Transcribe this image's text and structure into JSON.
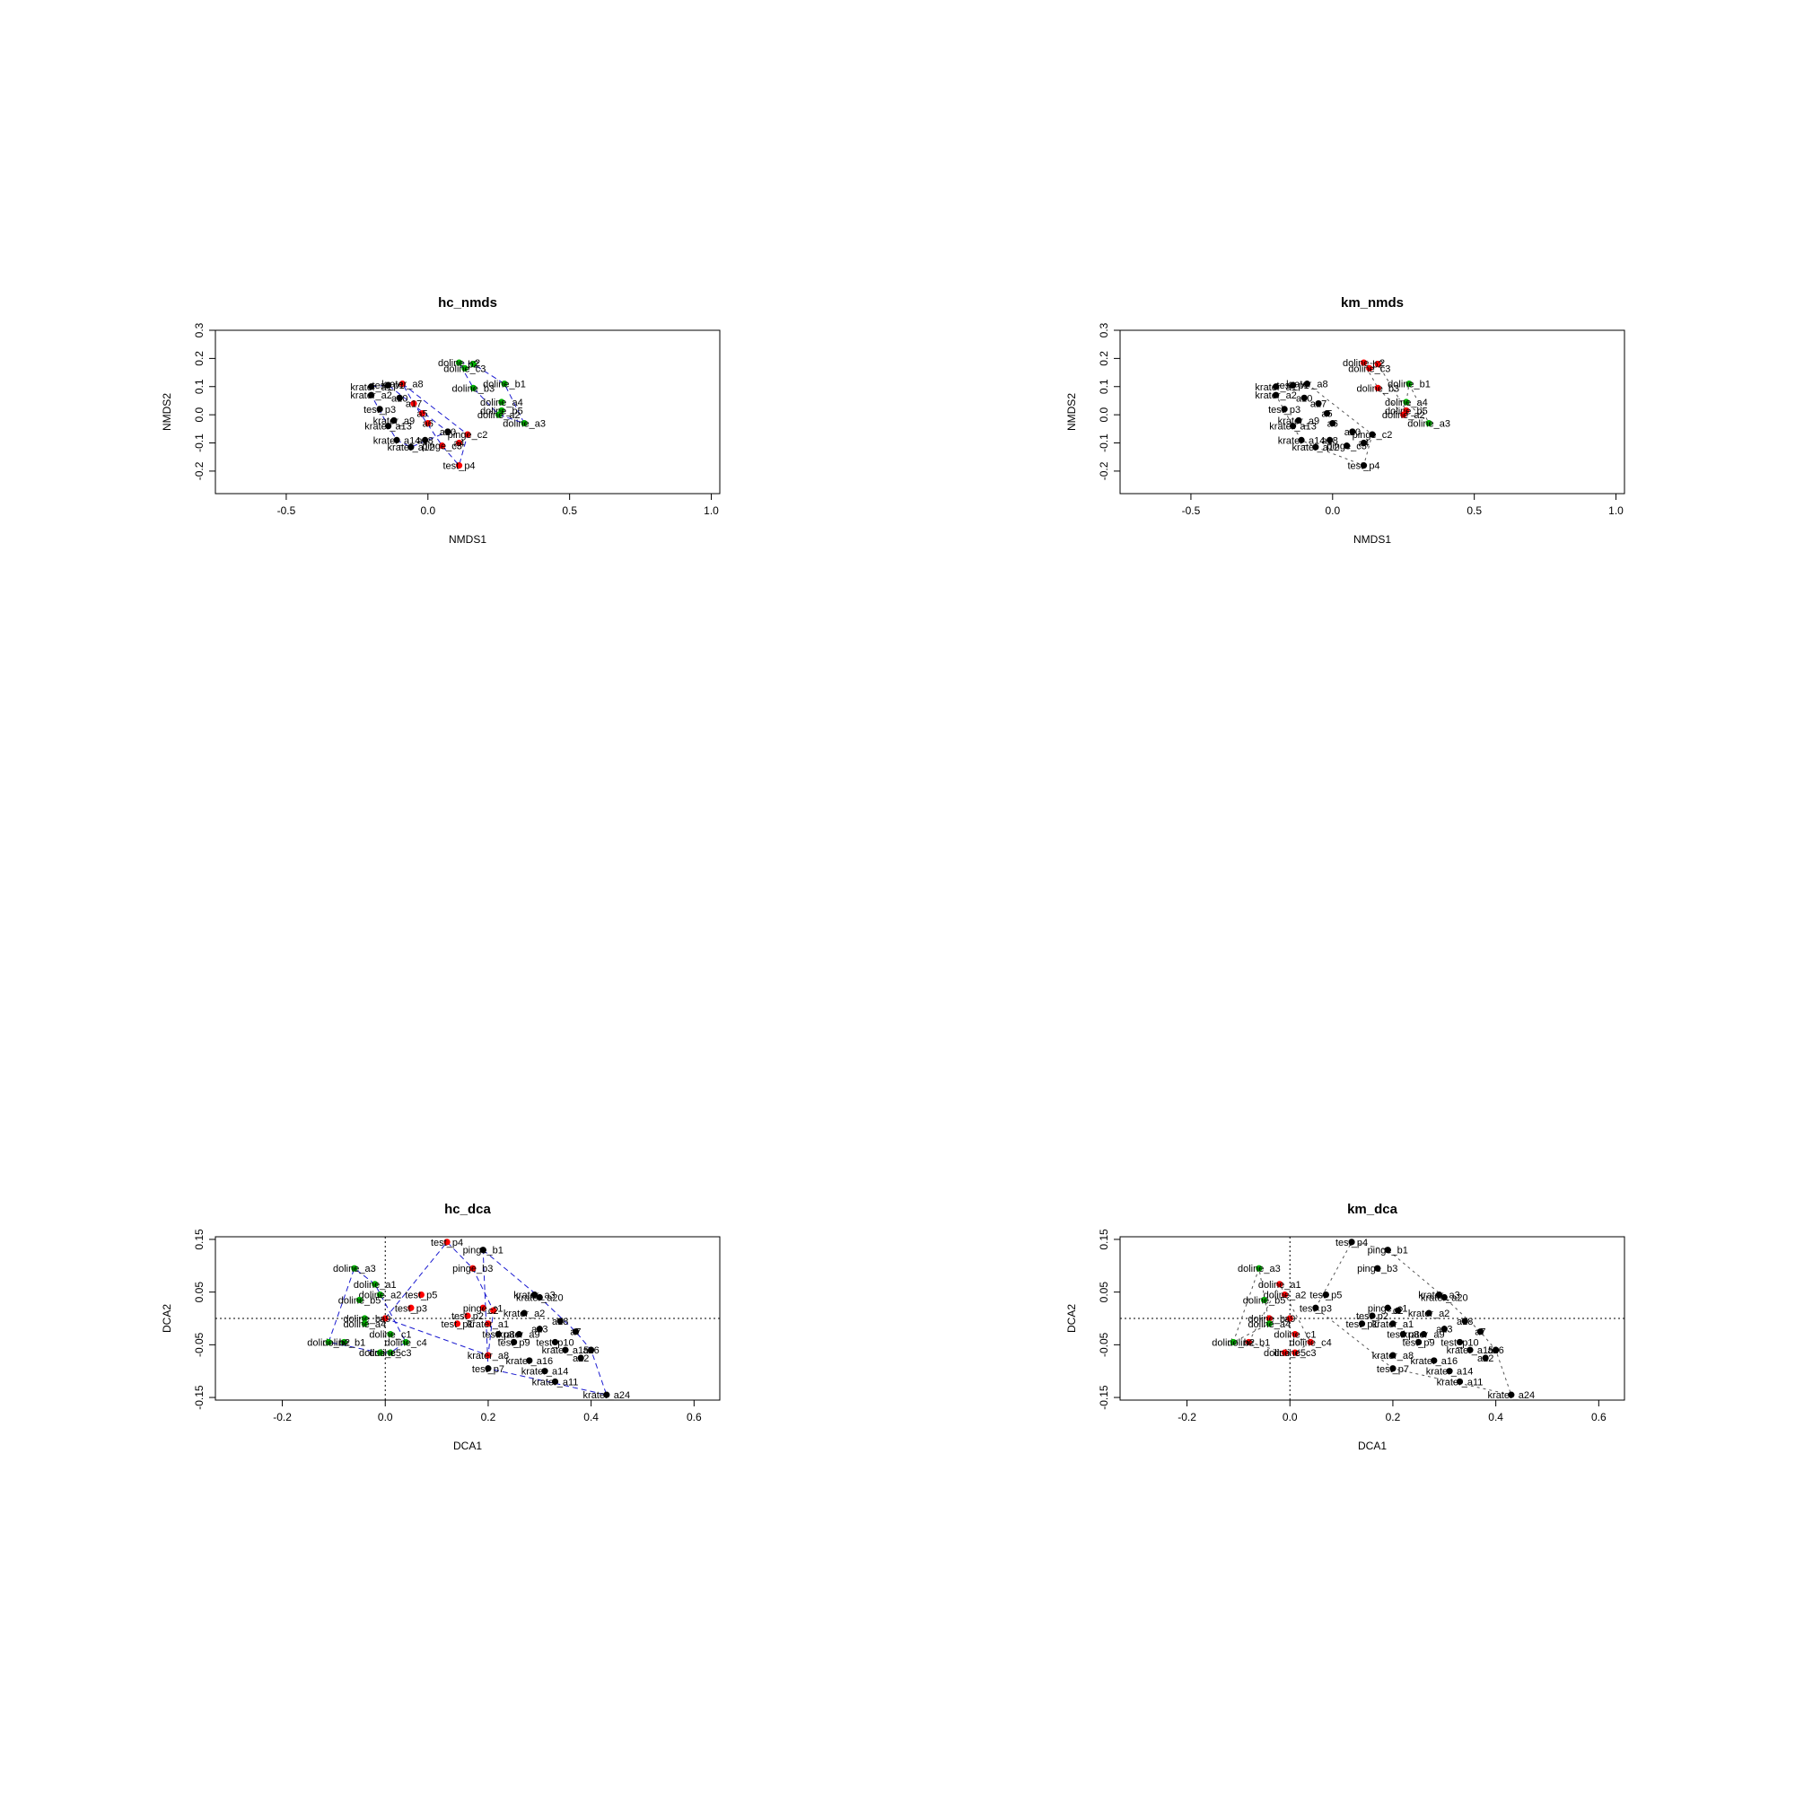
{
  "colors": {
    "cluster1": "#ff0000",
    "cluster2": "#000000",
    "cluster3": "#00b000",
    "hull_hc": "#1a1ad0",
    "hull_km": "#555555"
  },
  "chart_data": [
    {
      "type": "scatter",
      "title": "hc_nmds",
      "xlabel": "NMDS1",
      "ylabel": "NMDS2",
      "xlim": [
        -0.75,
        1.03
      ],
      "ylim": [
        -0.28,
        0.3
      ],
      "xticks": [
        "-0.5",
        "0.0",
        "0.5",
        "1.0"
      ],
      "xtick_values": [
        -0.5,
        0,
        0.5,
        1.0
      ],
      "yticks": [
        "-0.2",
        "-0.1",
        "0.0",
        "0.1",
        "0.2",
        "0.3"
      ],
      "ytick_values": [
        -0.2,
        -0.1,
        0,
        0.1,
        0.2,
        0.3
      ],
      "origin_lines": false,
      "hull_style": "hc",
      "points": [
        {
          "x": 0.11,
          "y": 0.185,
          "c": 3,
          "label": "doline_c2"
        },
        {
          "x": 0.16,
          "y": 0.18,
          "c": 3,
          "label": "b2"
        },
        {
          "x": 0.13,
          "y": 0.165,
          "c": 3,
          "label": "doline_c3"
        },
        {
          "x": 0.27,
          "y": 0.11,
          "c": 3,
          "label": "doline_b1"
        },
        {
          "x": 0.16,
          "y": 0.095,
          "c": 3,
          "label": "doline_b3"
        },
        {
          "x": 0.26,
          "y": 0.045,
          "c": 3,
          "label": "doline_a4"
        },
        {
          "x": 0.26,
          "y": 0.015,
          "c": 3,
          "label": "doline_b5"
        },
        {
          "x": 0.25,
          "y": 0.0,
          "c": 3,
          "label": "doline_a2"
        },
        {
          "x": 0.34,
          "y": -0.03,
          "c": 3,
          "label": "doline_a3"
        },
        {
          "x": -0.09,
          "y": 0.11,
          "c": 1,
          "label": "krater_a8"
        },
        {
          "x": -0.05,
          "y": 0.04,
          "c": 1,
          "label": "a17"
        },
        {
          "x": -0.02,
          "y": 0.005,
          "c": 1,
          "label": "a5"
        },
        {
          "x": 0.0,
          "y": -0.03,
          "c": 1,
          "label": "a6"
        },
        {
          "x": 0.14,
          "y": -0.07,
          "c": 1,
          "label": "pinge_c2"
        },
        {
          "x": 0.11,
          "y": -0.1,
          "c": 1,
          "label": "a4"
        },
        {
          "x": 0.05,
          "y": -0.11,
          "c": 1,
          "label": "pinge_c3"
        },
        {
          "x": 0.11,
          "y": -0.18,
          "c": 1,
          "label": "test_p4"
        },
        {
          "x": -0.2,
          "y": 0.1,
          "c": 2,
          "label": "krater_a1"
        },
        {
          "x": -0.14,
          "y": 0.105,
          "c": 2,
          "label": "test_p1"
        },
        {
          "x": -0.2,
          "y": 0.07,
          "c": 2,
          "label": "krater_a2"
        },
        {
          "x": -0.1,
          "y": 0.06,
          "c": 2,
          "label": "a10"
        },
        {
          "x": -0.17,
          "y": 0.02,
          "c": 2,
          "label": "test_p3"
        },
        {
          "x": -0.12,
          "y": -0.02,
          "c": 2,
          "label": "krater_a9"
        },
        {
          "x": -0.14,
          "y": -0.04,
          "c": 2,
          "label": "krater_a13"
        },
        {
          "x": -0.11,
          "y": -0.09,
          "c": 2,
          "label": "krater_a14"
        },
        {
          "x": -0.06,
          "y": -0.115,
          "c": 2,
          "label": "krater_a12"
        },
        {
          "x": -0.01,
          "y": -0.09,
          "c": 2,
          "label": "a18"
        },
        {
          "x": 0.07,
          "y": -0.06,
          "c": 2,
          "label": "a20"
        }
      ]
    },
    {
      "type": "scatter",
      "title": "km_nmds",
      "xlabel": "NMDS1",
      "ylabel": "NMDS2",
      "xlim": [
        -0.75,
        1.03
      ],
      "ylim": [
        -0.28,
        0.3
      ],
      "xticks": [
        "-0.5",
        "0.0",
        "0.5",
        "1.0"
      ],
      "xtick_values": [
        -0.5,
        0,
        0.5,
        1.0
      ],
      "yticks": [
        "-0.2",
        "-0.1",
        "0.0",
        "0.1",
        "0.2",
        "0.3"
      ],
      "ytick_values": [
        -0.2,
        -0.1,
        0,
        0.1,
        0.2,
        0.3
      ],
      "origin_lines": false,
      "hull_style": "km",
      "points": [
        {
          "x": 0.11,
          "y": 0.185,
          "c": 1,
          "label": "doline_c2"
        },
        {
          "x": 0.16,
          "y": 0.18,
          "c": 1,
          "label": "b2"
        },
        {
          "x": 0.13,
          "y": 0.165,
          "c": 1,
          "label": "doline_c3"
        },
        {
          "x": 0.27,
          "y": 0.11,
          "c": 3,
          "label": "doline_b1"
        },
        {
          "x": 0.16,
          "y": 0.095,
          "c": 1,
          "label": "doline_b3"
        },
        {
          "x": 0.26,
          "y": 0.045,
          "c": 3,
          "label": "doline_a4"
        },
        {
          "x": 0.26,
          "y": 0.015,
          "c": 1,
          "label": "doline_b5"
        },
        {
          "x": 0.25,
          "y": 0.0,
          "c": 1,
          "label": "doline_a2"
        },
        {
          "x": 0.34,
          "y": -0.03,
          "c": 3,
          "label": "doline_a3"
        },
        {
          "x": -0.09,
          "y": 0.11,
          "c": 2,
          "label": "krater_a8"
        },
        {
          "x": -0.05,
          "y": 0.04,
          "c": 2,
          "label": "a17"
        },
        {
          "x": -0.02,
          "y": 0.005,
          "c": 2,
          "label": "a5"
        },
        {
          "x": 0.0,
          "y": -0.03,
          "c": 2,
          "label": "a6"
        },
        {
          "x": 0.14,
          "y": -0.07,
          "c": 2,
          "label": "pinge_c2"
        },
        {
          "x": 0.11,
          "y": -0.1,
          "c": 2,
          "label": "a4"
        },
        {
          "x": 0.05,
          "y": -0.11,
          "c": 2,
          "label": "pinge_c3"
        },
        {
          "x": 0.11,
          "y": -0.18,
          "c": 2,
          "label": "test_p4"
        },
        {
          "x": -0.2,
          "y": 0.1,
          "c": 2,
          "label": "krater_a1"
        },
        {
          "x": -0.14,
          "y": 0.105,
          "c": 2,
          "label": "test_p1"
        },
        {
          "x": -0.2,
          "y": 0.07,
          "c": 2,
          "label": "krater_a2"
        },
        {
          "x": -0.1,
          "y": 0.06,
          "c": 2,
          "label": "a10"
        },
        {
          "x": -0.17,
          "y": 0.02,
          "c": 2,
          "label": "test_p3"
        },
        {
          "x": -0.12,
          "y": -0.02,
          "c": 2,
          "label": "krater_a9"
        },
        {
          "x": -0.14,
          "y": -0.04,
          "c": 2,
          "label": "krater_a13"
        },
        {
          "x": -0.11,
          "y": -0.09,
          "c": 2,
          "label": "krater_a14"
        },
        {
          "x": -0.06,
          "y": -0.115,
          "c": 2,
          "label": "krater_a12"
        },
        {
          "x": -0.01,
          "y": -0.09,
          "c": 2,
          "label": "a18"
        },
        {
          "x": 0.07,
          "y": -0.06,
          "c": 2,
          "label": "a20"
        }
      ]
    },
    {
      "type": "scatter",
      "title": "hc_dca",
      "xlabel": "DCA1",
      "ylabel": "DCA2",
      "xlim": [
        -0.33,
        0.65
      ],
      "ylim": [
        -0.155,
        0.155
      ],
      "xticks": [
        "-0.2",
        "0.0",
        "0.2",
        "0.4",
        "0.6"
      ],
      "xtick_values": [
        -0.2,
        0,
        0.2,
        0.4,
        0.6
      ],
      "yticks": [
        "-0.15",
        "-0.05",
        "0.05",
        "0.15"
      ],
      "ytick_values": [
        -0.15,
        -0.05,
        0.05,
        0.15
      ],
      "origin_lines": true,
      "hull_style": "hc",
      "points": [
        {
          "x": 0.12,
          "y": 0.145,
          "c": 1,
          "label": "test_p4"
        },
        {
          "x": 0.19,
          "y": 0.13,
          "c": 2,
          "label": "pinge_b1"
        },
        {
          "x": 0.17,
          "y": 0.095,
          "c": 1,
          "label": "pinge_b3"
        },
        {
          "x": 0.07,
          "y": 0.045,
          "c": 1,
          "label": "test_p5"
        },
        {
          "x": 0.05,
          "y": 0.02,
          "c": 1,
          "label": "test_p3"
        },
        {
          "x": 0.19,
          "y": 0.02,
          "c": 1,
          "label": "pinge_c1"
        },
        {
          "x": 0.21,
          "y": 0.015,
          "c": 1,
          "label": "c2"
        },
        {
          "x": 0.16,
          "y": 0.005,
          "c": 1,
          "label": "test_p2"
        },
        {
          "x": 0.14,
          "y": -0.01,
          "c": 1,
          "label": "test_p1"
        },
        {
          "x": 0.2,
          "y": -0.01,
          "c": 1,
          "label": "krater_a1"
        },
        {
          "x": 0.22,
          "y": -0.03,
          "c": 2,
          "label": "test_p8"
        },
        {
          "x": -0.06,
          "y": 0.095,
          "c": 3,
          "label": "doline_a3"
        },
        {
          "x": -0.02,
          "y": 0.065,
          "c": 3,
          "label": "doline_a1"
        },
        {
          "x": -0.01,
          "y": 0.045,
          "c": 3,
          "label": "doline_a2"
        },
        {
          "x": -0.05,
          "y": 0.035,
          "c": 3,
          "label": "doline_b5"
        },
        {
          "x": -0.04,
          "y": 0.0,
          "c": 3,
          "label": "doline_b4"
        },
        {
          "x": -0.04,
          "y": -0.01,
          "c": 3,
          "label": "doline_a4"
        },
        {
          "x": 0.01,
          "y": -0.03,
          "c": 3,
          "label": "doline_c1"
        },
        {
          "x": -0.08,
          "y": -0.045,
          "c": 3,
          "label": "doline_b1"
        },
        {
          "x": -0.11,
          "y": -0.045,
          "c": 3,
          "label": "doline_b2"
        },
        {
          "x": 0.04,
          "y": -0.045,
          "c": 3,
          "label": "doline_c4"
        },
        {
          "x": 0.01,
          "y": -0.065,
          "c": 3,
          "label": "doline_c3"
        },
        {
          "x": -0.01,
          "y": -0.065,
          "c": 3,
          "label": "doline_c5"
        },
        {
          "x": 0.0,
          "y": 0.0,
          "c": 1,
          "label": "a9"
        },
        {
          "x": 0.29,
          "y": 0.045,
          "c": 2,
          "label": "krater_a3"
        },
        {
          "x": 0.3,
          "y": 0.04,
          "c": 2,
          "label": "krater_a20"
        },
        {
          "x": 0.27,
          "y": 0.01,
          "c": 2,
          "label": "krater_a2"
        },
        {
          "x": 0.34,
          "y": -0.005,
          "c": 2,
          "label": "a18"
        },
        {
          "x": 0.37,
          "y": -0.025,
          "c": 2,
          "label": "a7"
        },
        {
          "x": 0.33,
          "y": -0.045,
          "c": 2,
          "label": "test_p10"
        },
        {
          "x": 0.35,
          "y": -0.06,
          "c": 2,
          "label": "krater_a15"
        },
        {
          "x": 0.4,
          "y": -0.06,
          "c": 2,
          "label": "a26"
        },
        {
          "x": 0.38,
          "y": -0.075,
          "c": 2,
          "label": "a22"
        },
        {
          "x": 0.28,
          "y": -0.08,
          "c": 2,
          "label": "krater_a16"
        },
        {
          "x": 0.2,
          "y": -0.07,
          "c": 1,
          "label": "krater_a8"
        },
        {
          "x": 0.2,
          "y": -0.095,
          "c": 2,
          "label": "test_p7"
        },
        {
          "x": 0.31,
          "y": -0.1,
          "c": 2,
          "label": "krater_a14"
        },
        {
          "x": 0.33,
          "y": -0.12,
          "c": 2,
          "label": "krater_a11"
        },
        {
          "x": 0.43,
          "y": -0.145,
          "c": 2,
          "label": "krater_a24"
        },
        {
          "x": 0.26,
          "y": -0.03,
          "c": 2,
          "label": "krater_a9"
        },
        {
          "x": 0.3,
          "y": -0.02,
          "c": 2,
          "label": "a13"
        },
        {
          "x": 0.25,
          "y": -0.045,
          "c": 2,
          "label": "test_p9"
        }
      ]
    },
    {
      "type": "scatter",
      "title": "km_dca",
      "xlabel": "DCA1",
      "ylabel": "DCA2",
      "xlim": [
        -0.33,
        0.65
      ],
      "ylim": [
        -0.155,
        0.155
      ],
      "xticks": [
        "-0.2",
        "0.0",
        "0.2",
        "0.4",
        "0.6"
      ],
      "xtick_values": [
        -0.2,
        0,
        0.2,
        0.4,
        0.6
      ],
      "yticks": [
        "-0.15",
        "-0.05",
        "0.05",
        "0.15"
      ],
      "ytick_values": [
        -0.15,
        -0.05,
        0.05,
        0.15
      ],
      "origin_lines": true,
      "hull_style": "km",
      "points": [
        {
          "x": 0.12,
          "y": 0.145,
          "c": 2,
          "label": "test_p4"
        },
        {
          "x": 0.19,
          "y": 0.13,
          "c": 2,
          "label": "pinge_b1"
        },
        {
          "x": 0.17,
          "y": 0.095,
          "c": 2,
          "label": "pinge_b3"
        },
        {
          "x": 0.07,
          "y": 0.045,
          "c": 2,
          "label": "test_p5"
        },
        {
          "x": 0.05,
          "y": 0.02,
          "c": 2,
          "label": "test_p3"
        },
        {
          "x": 0.19,
          "y": 0.02,
          "c": 2,
          "label": "pinge_c1"
        },
        {
          "x": 0.21,
          "y": 0.015,
          "c": 2,
          "label": "c2"
        },
        {
          "x": 0.16,
          "y": 0.005,
          "c": 2,
          "label": "test_p2"
        },
        {
          "x": 0.14,
          "y": -0.01,
          "c": 2,
          "label": "test_p1"
        },
        {
          "x": 0.2,
          "y": -0.01,
          "c": 2,
          "label": "krater_a1"
        },
        {
          "x": 0.22,
          "y": -0.03,
          "c": 2,
          "label": "test_p8"
        },
        {
          "x": -0.06,
          "y": 0.095,
          "c": 3,
          "label": "doline_a3"
        },
        {
          "x": -0.02,
          "y": 0.065,
          "c": 1,
          "label": "doline_a1"
        },
        {
          "x": -0.01,
          "y": 0.045,
          "c": 1,
          "label": "doline_a2"
        },
        {
          "x": -0.05,
          "y": 0.035,
          "c": 3,
          "label": "doline_b5"
        },
        {
          "x": -0.04,
          "y": 0.0,
          "c": 1,
          "label": "doline_b4"
        },
        {
          "x": -0.04,
          "y": -0.01,
          "c": 3,
          "label": "doline_a4"
        },
        {
          "x": 0.01,
          "y": -0.03,
          "c": 1,
          "label": "doline_c1"
        },
        {
          "x": -0.08,
          "y": -0.045,
          "c": 1,
          "label": "doline_b1"
        },
        {
          "x": -0.11,
          "y": -0.045,
          "c": 3,
          "label": "doline_b2"
        },
        {
          "x": 0.04,
          "y": -0.045,
          "c": 1,
          "label": "doline_c4"
        },
        {
          "x": 0.01,
          "y": -0.065,
          "c": 1,
          "label": "doline_c3"
        },
        {
          "x": -0.01,
          "y": -0.065,
          "c": 1,
          "label": "doline_c5"
        },
        {
          "x": 0.0,
          "y": 0.0,
          "c": 1,
          "label": "a9"
        },
        {
          "x": 0.29,
          "y": 0.045,
          "c": 2,
          "label": "krater_a3"
        },
        {
          "x": 0.3,
          "y": 0.04,
          "c": 2,
          "label": "krater_a20"
        },
        {
          "x": 0.27,
          "y": 0.01,
          "c": 2,
          "label": "krater_a2"
        },
        {
          "x": 0.34,
          "y": -0.005,
          "c": 2,
          "label": "a18"
        },
        {
          "x": 0.37,
          "y": -0.025,
          "c": 2,
          "label": "a7"
        },
        {
          "x": 0.33,
          "y": -0.045,
          "c": 2,
          "label": "test_p10"
        },
        {
          "x": 0.35,
          "y": -0.06,
          "c": 2,
          "label": "krater_a15"
        },
        {
          "x": 0.4,
          "y": -0.06,
          "c": 2,
          "label": "a26"
        },
        {
          "x": 0.38,
          "y": -0.075,
          "c": 2,
          "label": "a22"
        },
        {
          "x": 0.28,
          "y": -0.08,
          "c": 2,
          "label": "krater_a16"
        },
        {
          "x": 0.2,
          "y": -0.07,
          "c": 2,
          "label": "krater_a8"
        },
        {
          "x": 0.2,
          "y": -0.095,
          "c": 2,
          "label": "test_p7"
        },
        {
          "x": 0.31,
          "y": -0.1,
          "c": 2,
          "label": "krater_a14"
        },
        {
          "x": 0.33,
          "y": -0.12,
          "c": 2,
          "label": "krater_a11"
        },
        {
          "x": 0.43,
          "y": -0.145,
          "c": 2,
          "label": "krater_a24"
        },
        {
          "x": 0.26,
          "y": -0.03,
          "c": 2,
          "label": "krater_a9"
        },
        {
          "x": 0.3,
          "y": -0.02,
          "c": 2,
          "label": "a13"
        },
        {
          "x": 0.25,
          "y": -0.045,
          "c": 2,
          "label": "test_p9"
        }
      ]
    }
  ]
}
